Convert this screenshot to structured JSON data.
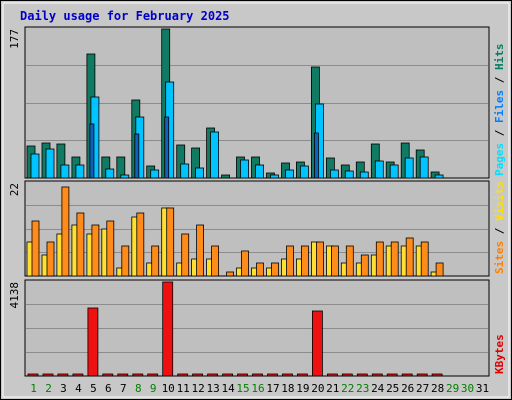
{
  "chart_data": {
    "type": "bar",
    "title": "Daily usage for February 2025",
    "categories": [
      "1",
      "2",
      "3",
      "4",
      "5",
      "6",
      "7",
      "8",
      "9",
      "10",
      "11",
      "12",
      "13",
      "14",
      "15",
      "16",
      "17",
      "18",
      "19",
      "20",
      "21",
      "22",
      "23",
      "24",
      "25",
      "26",
      "27",
      "28",
      "29",
      "30",
      "31"
    ],
    "weekend_days": [
      "1",
      "2",
      "8",
      "9",
      "15",
      "16",
      "22",
      "23",
      "29",
      "30"
    ],
    "future_days": [
      "29",
      "30",
      "31"
    ],
    "panels": [
      {
        "ymax_label": "177",
        "ymax": 177,
        "label_parts": [
          "Pages",
          " / ",
          "Files",
          " / ",
          "Hits"
        ],
        "label_colors": [
          "#00e0ff",
          "#000000",
          "#0080ff",
          "#000000",
          "#008060"
        ],
        "series": [
          {
            "name": "Hits",
            "color": "#107a62",
            "values": [
              38,
              42,
              40,
              25,
              147,
              25,
              25,
              93,
              14,
              177,
              39,
              36,
              59,
              4,
              25,
              25,
              6,
              18,
              19,
              132,
              24,
              16,
              19,
              40,
              19,
              42,
              33,
              7
            ]
          },
          {
            "name": "Files",
            "color": "#00c4ff",
            "values": [
              28,
              34,
              16,
              16,
              96,
              11,
              4,
              73,
              10,
              114,
              17,
              12,
              55,
              0,
              21,
              15,
              4,
              10,
              14,
              88,
              10,
              8,
              7,
              20,
              16,
              24,
              25,
              3
            ]
          },
          {
            "name": "Pages",
            "color": "#1060c0",
            "values": [
              0,
              0,
              0,
              0,
              64,
              0,
              0,
              52,
              0,
              72,
              0,
              0,
              0,
              0,
              0,
              0,
              0,
              0,
              0,
              53,
              0,
              0,
              0,
              0,
              0,
              0,
              0,
              0
            ]
          }
        ]
      },
      {
        "ymax_label": "22",
        "ymax": 22,
        "label_parts": [
          "Sites",
          " / ",
          "Visits"
        ],
        "label_colors": [
          "#ff8000",
          "#000000",
          "#ffe000"
        ],
        "series": [
          {
            "name": "Visits",
            "color": "#ffe030",
            "values": [
              8,
              5,
              10,
              12,
              10,
              11,
              2,
              14,
              3,
              16,
              3,
              4,
              4,
              0,
              2,
              2,
              2,
              4,
              4,
              8,
              7,
              3,
              3,
              5,
              7,
              7,
              7,
              1
            ]
          },
          {
            "name": "Sites",
            "color": "#ff8c1a",
            "values": [
              13,
              8,
              21,
              15,
              12,
              13,
              7,
              15,
              7,
              16,
              10,
              12,
              7,
              1,
              6,
              3,
              3,
              7,
              7,
              8,
              7,
              7,
              5,
              8,
              8,
              9,
              8,
              3
            ]
          }
        ]
      },
      {
        "ymax_label": "4138",
        "ymax": 4138,
        "label_parts": [
          "KBytes"
        ],
        "label_colors": [
          "#e00000"
        ],
        "series": [
          {
            "name": "KBytes",
            "color": "#ee1111",
            "values": [
              100,
              30,
              30,
              30,
              3000,
              30,
              30,
              30,
              30,
              4138,
              30,
              30,
              30,
              30,
              30,
              30,
              30,
              30,
              30,
              2850,
              30,
              30,
              30,
              30,
              80,
              30,
              30,
              30
            ]
          }
        ]
      }
    ],
    "colors": {
      "panel_bg": "#bfbfbf",
      "frame_bg": "#c8c8c8",
      "grid": "#8c8c8c",
      "title": "#0000cc",
      "weekday_label": "#000000",
      "weekend_label": "#008000",
      "future_label": "#000000"
    }
  }
}
